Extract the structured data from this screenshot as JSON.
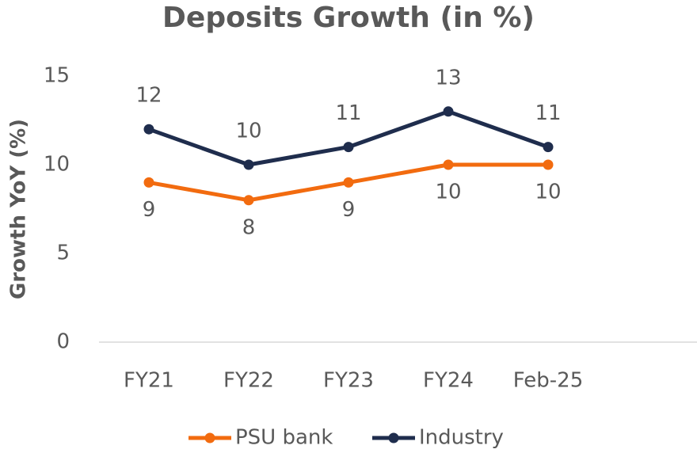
{
  "chart_data": {
    "type": "line",
    "title": "Deposits Growth (in %)",
    "y_label": "Growth YoY (%)",
    "categories": [
      "FY21",
      "FY22",
      "FY23",
      "FY24",
      "Feb-25"
    ],
    "series": [
      {
        "name": "PSU bank",
        "color": "#f26b0f",
        "values": [
          9,
          8,
          9,
          10,
          10
        ]
      },
      {
        "name": "Industry",
        "color": "#1f2d4d",
        "values": [
          12,
          10,
          11,
          13,
          11
        ]
      }
    ],
    "ylim": [
      0,
      15
    ],
    "yticks": [
      0,
      5,
      10,
      15
    ],
    "legend": "bottom"
  }
}
